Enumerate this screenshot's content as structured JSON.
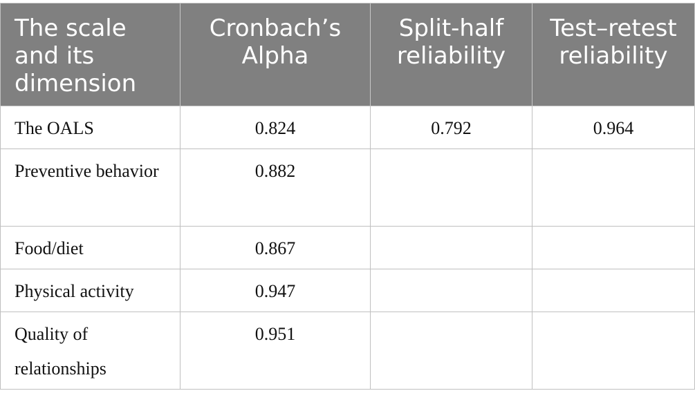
{
  "table": {
    "headers": [
      "The scale and its dimension",
      "Cronbach’s Alpha",
      "Split-half reliability",
      "Test–retest reliability"
    ],
    "rows": [
      {
        "dimension": "The OALS",
        "alpha": "0.824",
        "split_half": "0.792",
        "test_retest": "0.964"
      },
      {
        "dimension": "Preventive behavior",
        "alpha": "0.882",
        "split_half": "",
        "test_retest": ""
      },
      {
        "dimension": "Food/diet",
        "alpha": "0.867",
        "split_half": "",
        "test_retest": ""
      },
      {
        "dimension": "Physical activity",
        "alpha": "0.947",
        "split_half": "",
        "test_retest": ""
      },
      {
        "dimension": "Quality of relationships",
        "alpha": "0.951",
        "split_half": "",
        "test_retest": ""
      }
    ]
  },
  "colors": {
    "header_background": "#808080",
    "header_text": "#ffffff",
    "grid_line": "#bfbfbf"
  }
}
